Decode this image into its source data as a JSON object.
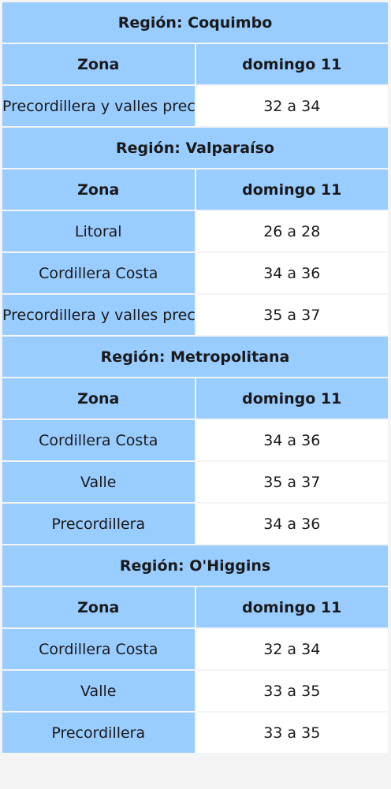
{
  "regions": [
    {
      "title": "Región: Coquimbo",
      "header": {
        "zone": "Zona",
        "day": "domingo 11"
      },
      "rows": [
        {
          "zone": "Precordillera y valles precordilleranos",
          "temp": "32 a 34"
        }
      ]
    },
    {
      "title": "Región: Valparaíso",
      "header": {
        "zone": "Zona",
        "day": "domingo 11"
      },
      "rows": [
        {
          "zone": "Litoral",
          "temp": "26 a 28"
        },
        {
          "zone": "Cordillera Costa",
          "temp": "34 a 36"
        },
        {
          "zone": "Precordillera y valles precordilleranos",
          "temp": "35 a 37"
        }
      ]
    },
    {
      "title": "Región: Metropolitana",
      "header": {
        "zone": "Zona",
        "day": "domingo 11"
      },
      "rows": [
        {
          "zone": "Cordillera Costa",
          "temp": "34 a 36"
        },
        {
          "zone": "Valle",
          "temp": "35 a 37"
        },
        {
          "zone": "Precordillera",
          "temp": "34 a 36"
        }
      ]
    },
    {
      "title": "Región: O'Higgins",
      "header": {
        "zone": "Zona",
        "day": "domingo 11"
      },
      "rows": [
        {
          "zone": "Cordillera Costa",
          "temp": "32 a 34"
        },
        {
          "zone": "Valle",
          "temp": "33 a 35"
        },
        {
          "zone": "Precordillera",
          "temp": "33 a 35"
        }
      ]
    }
  ],
  "colors": {
    "cell_blue": "#99ccff",
    "cell_white": "#ffffff",
    "page_bg": "#f4f4f4"
  }
}
